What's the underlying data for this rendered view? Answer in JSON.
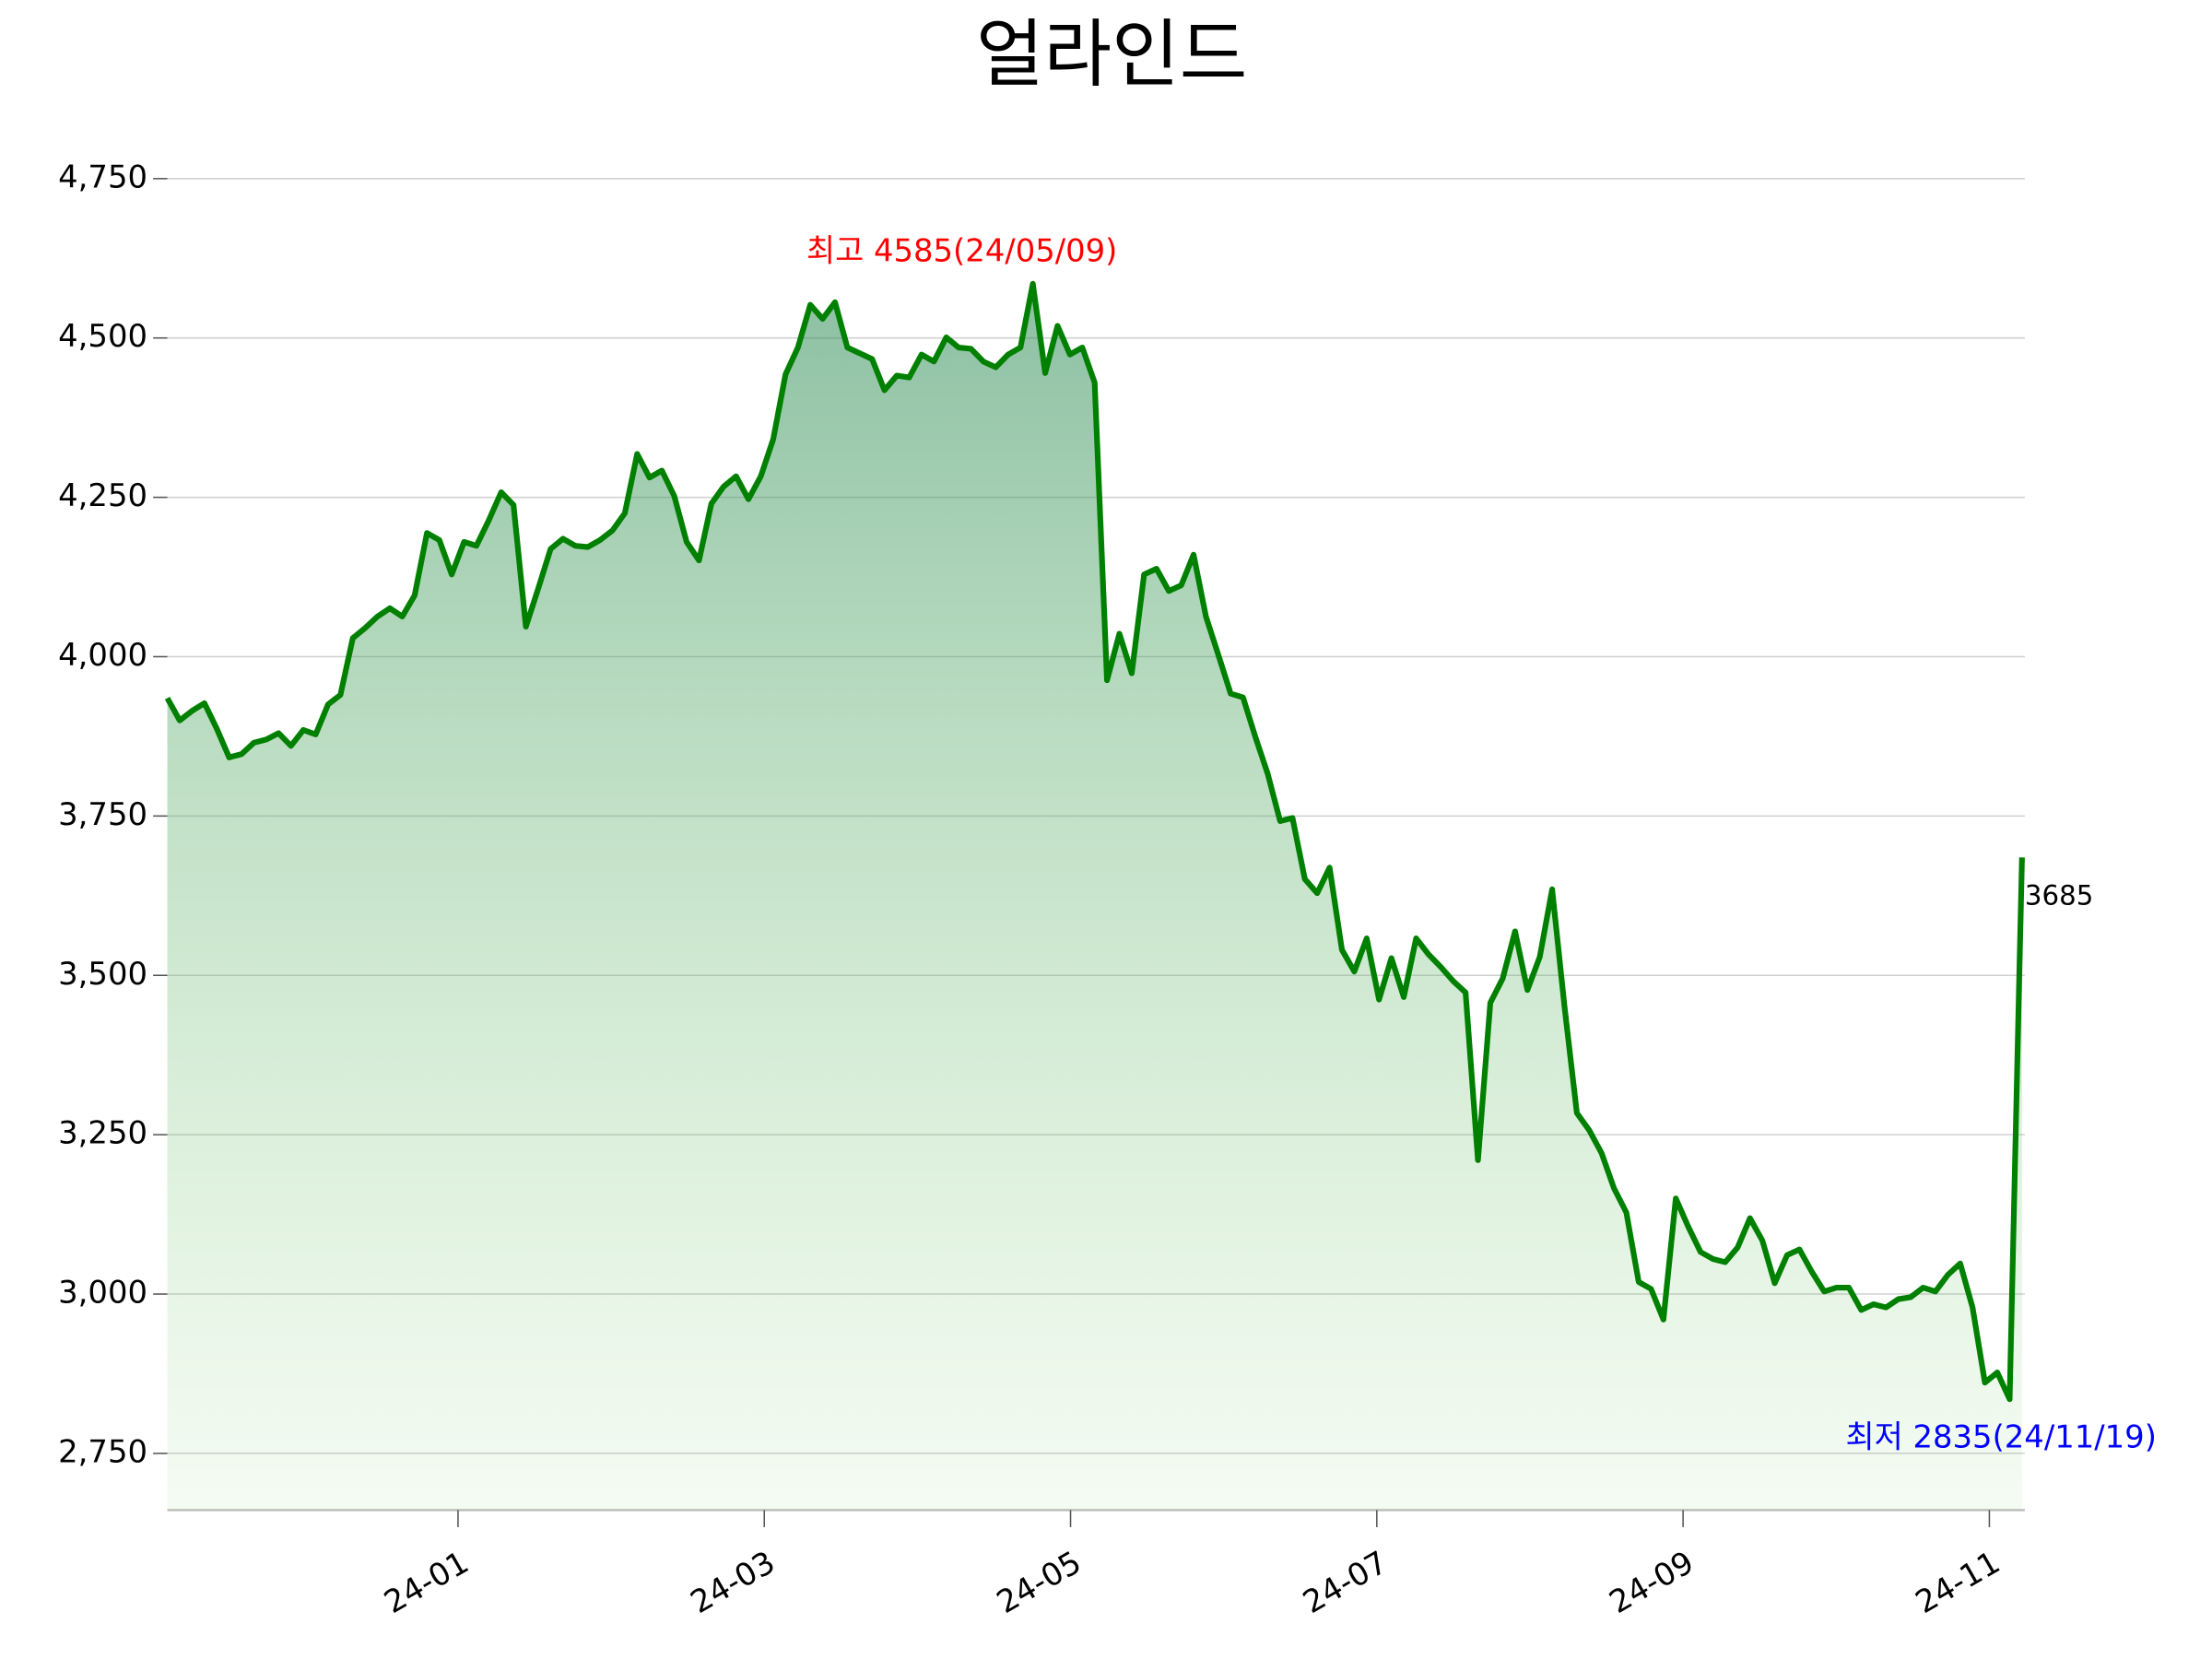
{
  "chart_data": {
    "type": "area",
    "title": "얼라인드",
    "color": "green",
    "values": [
      3935,
      3900,
      3915,
      3927,
      3887,
      3842,
      3847,
      3865,
      3870,
      3880,
      3860,
      3885,
      3878,
      3925,
      3940,
      4029,
      4045,
      4063,
      4076,
      4063,
      4096,
      4194,
      4183,
      4129,
      4180,
      4174,
      4214,
      4258,
      4238,
      4047,
      4107,
      4169,
      4185,
      4174,
      4172,
      4183,
      4198,
      4225,
      4318,
      4281,
      4292,
      4252,
      4180,
      4151,
      4240,
      4267,
      4283,
      4247,
      4283,
      4341,
      4443,
      4485,
      4552,
      4530,
      4556,
      4485,
      4476,
      4467,
      4418,
      4441,
      4438,
      4474,
      4463,
      4501,
      4485,
      4483,
      4463,
      4454,
      4474,
      4485,
      4585,
      4445,
      4519,
      4474,
      4485,
      4430,
      3963,
      4036,
      3974,
      4129,
      4138,
      4103,
      4112,
      4160,
      4063,
      4003,
      3942,
      3936,
      3874,
      3816,
      3742,
      3747,
      3651,
      3629,
      3669,
      3540,
      3506,
      3558,
      3462,
      3527,
      3466,
      3558,
      3533,
      3513,
      3491,
      3473,
      3210,
      3457,
      3495,
      3569,
      3477,
      3529,
      3635,
      3451,
      3284,
      3257,
      3221,
      3166,
      3128,
      3019,
      3008,
      2960,
      3150,
      3106,
      3066,
      3055,
      3050,
      3073,
      3119,
      3084,
      3017,
      3061,
      3070,
      3035,
      3004,
      3010,
      3010,
      2975,
      2984,
      2979,
      2992,
      2995,
      3010,
      3004,
      3030,
      3048,
      2979,
      2861,
      2877,
      2835,
      3685
    ],
    "xlim": [
      0,
      150
    ],
    "xticks": [
      {
        "value": 23.51,
        "label": "24-01"
      },
      {
        "value": 48.28,
        "label": "24-03"
      },
      {
        "value": 73.05,
        "label": "24-05"
      },
      {
        "value": 97.82,
        "label": "24-07"
      },
      {
        "value": 122.59,
        "label": "24-09"
      },
      {
        "value": 147.36,
        "label": "24-11"
      }
    ],
    "ylim": [
      2661,
      4790
    ],
    "yticks": [
      {
        "value": 2750,
        "label": "2,750"
      },
      {
        "value": 3000,
        "label": "3,000"
      },
      {
        "value": 3250,
        "label": "3,250"
      },
      {
        "value": 3500,
        "label": "3,500"
      },
      {
        "value": 3750,
        "label": "3,750"
      },
      {
        "value": 4000,
        "label": "4,000"
      },
      {
        "value": 4250,
        "label": "4,250"
      },
      {
        "value": 4500,
        "label": "4,500"
      },
      {
        "value": 4750,
        "label": "4,750"
      }
    ],
    "grid": true,
    "annotations": [
      {
        "text": "최고 4585(24/05/09)",
        "color": "red",
        "at": "max"
      },
      {
        "text": "최저 2835(24/11/19)",
        "color": "blue",
        "at": "min"
      },
      {
        "text": "3685",
        "color": "black",
        "at": "last"
      }
    ]
  }
}
